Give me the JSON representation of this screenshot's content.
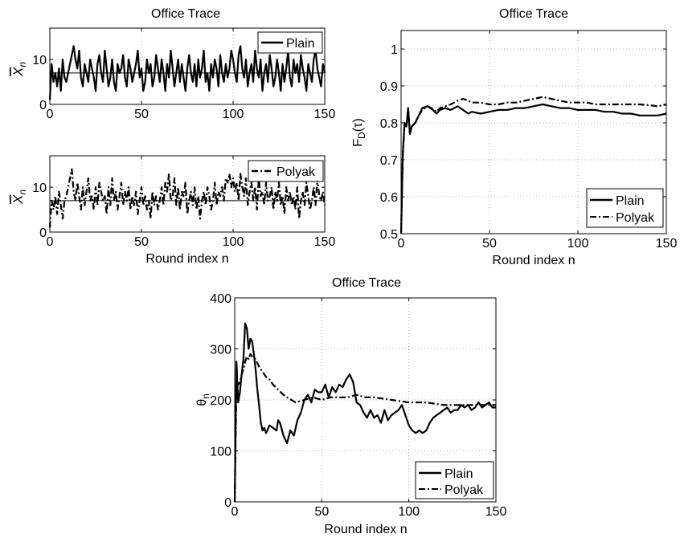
{
  "chart_data": [
    {
      "type": "line",
      "title": "Office Trace",
      "xlabel": "",
      "ylabel": "X̄n",
      "xlim": [
        0,
        150
      ],
      "ylim": [
        0,
        17
      ],
      "xticks": [
        0,
        50,
        100,
        150
      ],
      "yticks": [
        0,
        10
      ],
      "grid": true,
      "legend": "top-right",
      "reference_line": 7,
      "series": [
        {
          "name": "Plain",
          "style": "solid",
          "x_start": 0,
          "x_step": 1,
          "values": [
            1,
            9,
            5,
            7,
            4,
            8,
            3,
            10,
            6,
            5,
            7,
            9,
            11,
            13,
            10,
            8,
            12,
            6,
            4,
            9,
            7,
            5,
            10,
            8,
            6,
            3,
            9,
            11,
            7,
            5,
            12,
            8,
            4,
            6,
            10,
            5,
            3,
            9,
            7,
            8,
            11,
            6,
            4,
            10,
            8,
            5,
            7,
            9,
            12,
            6,
            8,
            3,
            5,
            10,
            7,
            9,
            4,
            6,
            11,
            8,
            5,
            10,
            7,
            3,
            9,
            6,
            12,
            8,
            4,
            7,
            10,
            5,
            9,
            6,
            3,
            8,
            11,
            7,
            5,
            9,
            4,
            10,
            6,
            8,
            12,
            5,
            7,
            3,
            9,
            6,
            10,
            8,
            4,
            11,
            7,
            5,
            9,
            6,
            8,
            12,
            10,
            7,
            5,
            11,
            13,
            8,
            6,
            10,
            4,
            7,
            9,
            5,
            12,
            8,
            6,
            10,
            3,
            7,
            9,
            5,
            11,
            8,
            4,
            6,
            10,
            7,
            3,
            9,
            5,
            8,
            12,
            6,
            4,
            10,
            7,
            9,
            5,
            11,
            8,
            6,
            3,
            9,
            7,
            5,
            10,
            12,
            8,
            6,
            4,
            9,
            7
          ]
        }
      ]
    },
    {
      "type": "line",
      "title": "",
      "xlabel": "Round index n",
      "ylabel": "X̄n",
      "xlim": [
        0,
        150
      ],
      "ylim": [
        0,
        17
      ],
      "xticks": [
        0,
        50,
        100,
        150
      ],
      "yticks": [
        0,
        10
      ],
      "grid": true,
      "legend": "top-right",
      "reference_line": 7,
      "series": [
        {
          "name": "Polyak",
          "style": "dash-dot",
          "x_start": 0,
          "x_step": 1,
          "values": [
            1,
            7,
            5,
            8,
            4,
            9,
            6,
            3,
            7,
            8,
            10,
            12,
            14,
            9,
            7,
            11,
            8,
            5,
            10,
            6,
            9,
            12,
            7,
            8,
            5,
            10,
            6,
            11,
            9,
            7,
            8,
            4,
            10,
            6,
            12,
            7,
            9,
            5,
            8,
            11,
            6,
            9,
            7,
            10,
            5,
            8,
            6,
            9,
            4,
            7,
            10,
            6,
            8,
            5,
            7,
            3,
            9,
            6,
            8,
            5,
            7,
            10,
            6,
            11,
            9,
            13,
            7,
            8,
            12,
            6,
            10,
            5,
            9,
            8,
            11,
            4,
            7,
            9,
            6,
            10,
            5,
            8,
            3,
            7,
            9,
            6,
            10,
            8,
            5,
            7,
            11,
            6,
            9,
            8,
            10,
            7,
            12,
            11,
            13,
            10,
            12,
            9,
            11,
            7,
            13,
            10,
            8,
            12,
            6,
            9,
            11,
            7,
            10,
            5,
            12,
            8,
            9,
            6,
            11,
            7,
            8,
            10,
            5,
            9,
            7,
            11,
            6,
            8,
            4,
            10,
            7,
            9,
            6,
            8,
            5,
            10,
            3,
            7,
            9,
            6,
            11,
            8,
            5,
            7,
            10,
            6,
            12,
            8,
            7,
            9,
            6
          ]
        }
      ]
    },
    {
      "type": "line",
      "title": "Office Trace",
      "xlabel": "Round index n",
      "ylabel": "F_D(τ)",
      "xlim": [
        0,
        150
      ],
      "ylim": [
        0.5,
        1.05
      ],
      "xticks": [
        0,
        50,
        100,
        150
      ],
      "yticks": [
        0.5,
        0.6,
        0.7,
        0.8,
        0.9,
        1
      ],
      "grid": true,
      "legend": "bottom-right",
      "series": [
        {
          "name": "Plain",
          "style": "solid",
          "x": [
            0,
            1,
            2,
            3,
            4,
            5,
            6,
            8,
            10,
            12,
            15,
            18,
            20,
            22,
            25,
            28,
            30,
            32,
            35,
            38,
            40,
            45,
            50,
            55,
            60,
            65,
            70,
            75,
            80,
            85,
            90,
            95,
            100,
            105,
            110,
            115,
            120,
            125,
            130,
            135,
            140,
            145,
            150
          ],
          "values": [
            0.5,
            0.72,
            0.8,
            0.79,
            0.84,
            0.77,
            0.79,
            0.8,
            0.82,
            0.84,
            0.845,
            0.835,
            0.825,
            0.835,
            0.84,
            0.835,
            0.84,
            0.845,
            0.835,
            0.825,
            0.83,
            0.825,
            0.83,
            0.835,
            0.835,
            0.84,
            0.84,
            0.845,
            0.85,
            0.845,
            0.84,
            0.84,
            0.835,
            0.835,
            0.835,
            0.83,
            0.83,
            0.825,
            0.825,
            0.82,
            0.82,
            0.82,
            0.825
          ]
        },
        {
          "name": "Polyak",
          "style": "dash-dot",
          "x": [
            0,
            1,
            2,
            3,
            4,
            5,
            6,
            8,
            10,
            12,
            15,
            18,
            20,
            22,
            25,
            28,
            30,
            32,
            35,
            38,
            40,
            45,
            50,
            55,
            60,
            65,
            70,
            75,
            80,
            85,
            90,
            95,
            100,
            105,
            110,
            115,
            120,
            125,
            130,
            135,
            140,
            145,
            150
          ],
          "values": [
            0.5,
            0.72,
            0.8,
            0.79,
            0.84,
            0.77,
            0.79,
            0.8,
            0.82,
            0.835,
            0.845,
            0.838,
            0.83,
            0.84,
            0.845,
            0.85,
            0.855,
            0.86,
            0.865,
            0.86,
            0.855,
            0.855,
            0.85,
            0.85,
            0.855,
            0.855,
            0.86,
            0.865,
            0.87,
            0.865,
            0.86,
            0.855,
            0.855,
            0.855,
            0.85,
            0.85,
            0.85,
            0.85,
            0.85,
            0.85,
            0.848,
            0.845,
            0.85
          ]
        }
      ]
    },
    {
      "type": "line",
      "title": "Office Trace",
      "xlabel": "Round index n",
      "ylabel": "θn",
      "xlim": [
        0,
        150
      ],
      "ylim": [
        0,
        400
      ],
      "xticks": [
        0,
        50,
        100,
        150
      ],
      "yticks": [
        0,
        100,
        200,
        300,
        400
      ],
      "grid": true,
      "legend": "bottom-right",
      "series": [
        {
          "name": "Plain",
          "style": "solid",
          "x": [
            0,
            1,
            2,
            3,
            4,
            5,
            6,
            7,
            8,
            9,
            10,
            11,
            12,
            13,
            14,
            15,
            16,
            17,
            18,
            20,
            22,
            24,
            25,
            26,
            28,
            30,
            32,
            34,
            36,
            38,
            40,
            42,
            44,
            46,
            48,
            50,
            52,
            54,
            56,
            58,
            60,
            62,
            64,
            66,
            68,
            70,
            72,
            74,
            76,
            78,
            80,
            82,
            84,
            86,
            88,
            90,
            92,
            94,
            96,
            98,
            100,
            102,
            104,
            106,
            108,
            110,
            112,
            114,
            116,
            118,
            120,
            122,
            124,
            126,
            128,
            130,
            132,
            134,
            136,
            138,
            140,
            142,
            144,
            146,
            148,
            150
          ],
          "values": [
            0,
            275,
            195,
            215,
            250,
            280,
            350,
            340,
            300,
            320,
            315,
            290,
            260,
            220,
            190,
            155,
            140,
            145,
            135,
            150,
            145,
            140,
            160,
            155,
            130,
            115,
            140,
            130,
            160,
            175,
            200,
            210,
            195,
            220,
            215,
            215,
            230,
            205,
            225,
            215,
            230,
            225,
            240,
            250,
            235,
            195,
            190,
            175,
            165,
            180,
            165,
            170,
            155,
            180,
            160,
            170,
            175,
            180,
            190,
            170,
            150,
            140,
            135,
            140,
            135,
            140,
            155,
            165,
            170,
            175,
            180,
            185,
            175,
            180,
            180,
            190,
            185,
            190,
            180,
            185,
            195,
            185,
            190,
            195,
            185,
            185
          ]
        },
        {
          "name": "Polyak",
          "style": "dash-dot",
          "x": [
            0,
            1,
            2,
            3,
            4,
            5,
            6,
            7,
            8,
            9,
            10,
            12,
            14,
            16,
            18,
            20,
            22,
            25,
            28,
            30,
            35,
            40,
            45,
            50,
            55,
            60,
            65,
            70,
            75,
            80,
            90,
            100,
            110,
            120,
            130,
            140,
            150
          ],
          "values": [
            0,
            230,
            230,
            235,
            250,
            260,
            275,
            285,
            280,
            290,
            285,
            280,
            265,
            255,
            245,
            240,
            230,
            220,
            210,
            205,
            195,
            200,
            205,
            200,
            205,
            205,
            205,
            210,
            205,
            205,
            200,
            195,
            195,
            190,
            190,
            190,
            190
          ]
        }
      ]
    }
  ]
}
